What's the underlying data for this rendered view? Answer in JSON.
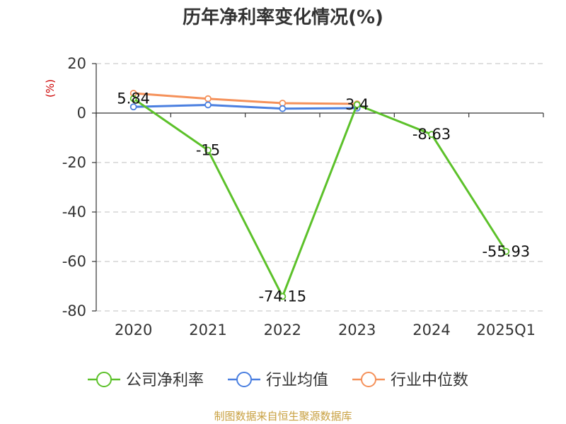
{
  "chart_data": {
    "type": "line",
    "title": "历年净利率变化情况(%)",
    "ylabel": "(%)",
    "categories": [
      "2020",
      "2021",
      "2022",
      "2023",
      "2024",
      "2025Q1"
    ],
    "ylim": [
      -80,
      20
    ],
    "yticks": [
      20,
      0,
      -20,
      -40,
      -60,
      -80
    ],
    "grid": true,
    "legend_position": "bottom",
    "series": [
      {
        "name": "公司净利率",
        "values": [
          5.84,
          -15,
          -74.15,
          3.4,
          -8.63,
          -55.93
        ],
        "labels": [
          "5.84",
          "-15",
          "-74.15",
          "3.4",
          "-8.63",
          "-55.93"
        ],
        "color": "#5cc12a"
      },
      {
        "name": "行业均值",
        "values": [
          2.5,
          3.3,
          1.8,
          2.0,
          null,
          null
        ],
        "color": "#4a7fe0"
      },
      {
        "name": "行业中位数",
        "values": [
          8.0,
          5.8,
          4.0,
          3.7,
          null,
          null
        ],
        "color": "#f5915a"
      }
    ]
  },
  "source": "制图数据来自恒生聚源数据库",
  "colors": {
    "axis": "#333333",
    "grid": "#cccccc",
    "ylabel": "#cc0000",
    "source": "#c8a040"
  }
}
